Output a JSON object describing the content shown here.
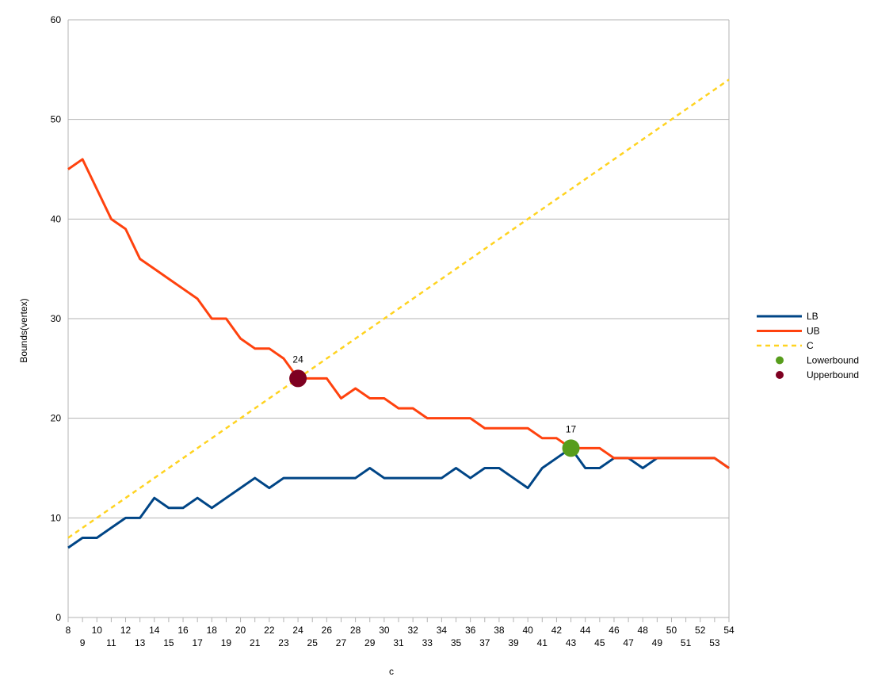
{
  "chart_data": {
    "type": "line",
    "title": "",
    "xlabel": "c",
    "ylabel": "Bounds(vertex)",
    "x": [
      8,
      9,
      10,
      11,
      12,
      13,
      14,
      15,
      16,
      17,
      18,
      19,
      20,
      21,
      22,
      23,
      24,
      25,
      26,
      27,
      28,
      29,
      30,
      31,
      32,
      33,
      34,
      35,
      36,
      37,
      38,
      39,
      40,
      41,
      42,
      43,
      44,
      45,
      46,
      47,
      48,
      49,
      50,
      51,
      52,
      53,
      54
    ],
    "xlim": [
      8,
      54
    ],
    "ylim": [
      0,
      60
    ],
    "yticks": [
      0,
      10,
      20,
      30,
      40,
      50,
      60
    ],
    "grid": "horizontal",
    "legend_position": "right",
    "series": [
      {
        "name": "LB",
        "color": "#004586",
        "style": "solid",
        "values": [
          7,
          8,
          8,
          9,
          10,
          10,
          12,
          11,
          11,
          12,
          11,
          12,
          13,
          14,
          13,
          14,
          14,
          14,
          14,
          14,
          14,
          15,
          14,
          14,
          14,
          14,
          14,
          15,
          14,
          15,
          15,
          14,
          13,
          15,
          16,
          17,
          15,
          15,
          16,
          16,
          15,
          16,
          16,
          16,
          16,
          16,
          15
        ]
      },
      {
        "name": "UB",
        "color": "#ff420e",
        "style": "solid",
        "values": [
          45,
          46,
          43,
          40,
          39,
          36,
          35,
          34,
          33,
          32,
          30,
          30,
          28,
          27,
          27,
          26,
          24,
          24,
          24,
          22,
          23,
          22,
          22,
          21,
          21,
          20,
          20,
          20,
          20,
          19,
          19,
          19,
          19,
          18,
          18,
          17,
          17,
          17,
          16,
          16,
          16,
          16,
          16,
          16,
          16,
          16,
          15
        ]
      },
      {
        "name": "C",
        "color": "#ffd320",
        "style": "dashed",
        "values": [
          8,
          9,
          10,
          11,
          12,
          13,
          14,
          15,
          16,
          17,
          18,
          19,
          20,
          21,
          22,
          23,
          24,
          25,
          26,
          27,
          28,
          29,
          30,
          31,
          32,
          33,
          34,
          35,
          36,
          37,
          38,
          39,
          40,
          41,
          42,
          43,
          44,
          45,
          46,
          47,
          48,
          49,
          50,
          51,
          52,
          53,
          54
        ]
      }
    ],
    "points": [
      {
        "name": "Lowerbound",
        "color": "#579d1c",
        "x": 43,
        "y": 17,
        "label": "17"
      },
      {
        "name": "Upperbound",
        "color": "#7e0021",
        "x": 24,
        "y": 24,
        "label": "24"
      }
    ]
  }
}
